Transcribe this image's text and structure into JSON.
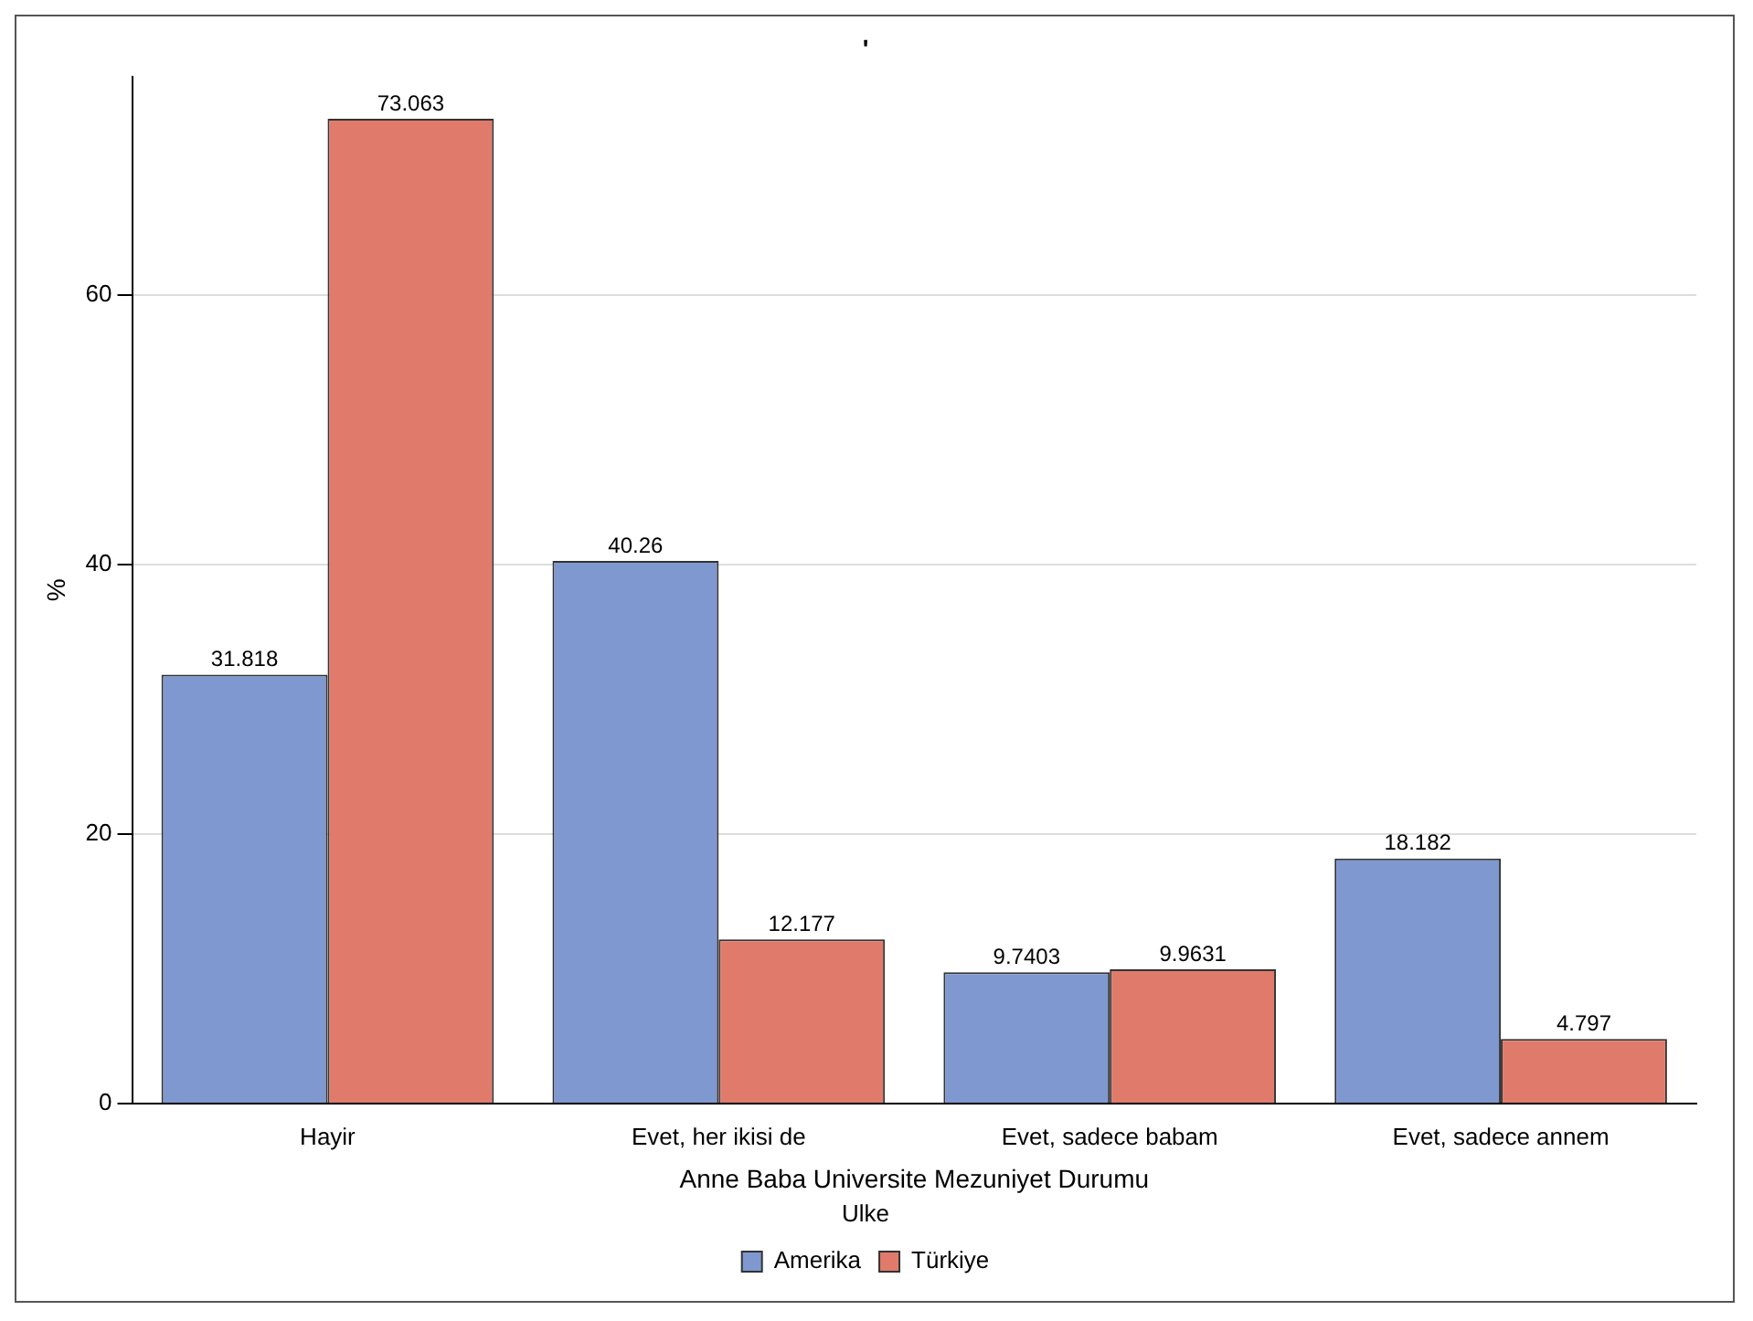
{
  "chart_data": {
    "type": "bar",
    "title": "'",
    "xlabel": "Anne Baba Universite Mezuniyet Durumu",
    "ylabel": "%",
    "legend_title": "Ulke",
    "categories": [
      "Hayir",
      "Evet, her ikisi de",
      "Evet, sadece babam",
      "Evet, sadece annem"
    ],
    "series": [
      {
        "name": "Amerika",
        "color": "#7f98cf",
        "values": [
          31.818,
          40.26,
          9.7403,
          18.182
        ]
      },
      {
        "name": "Türkiye",
        "color": "#e07b6c",
        "values": [
          73.063,
          12.177,
          9.9631,
          4.797
        ]
      }
    ],
    "ylim": [
      0,
      76.2
    ],
    "yticks": [
      0,
      20,
      40,
      60
    ],
    "grid": "y",
    "legend": "bottom",
    "data_labels": true
  }
}
